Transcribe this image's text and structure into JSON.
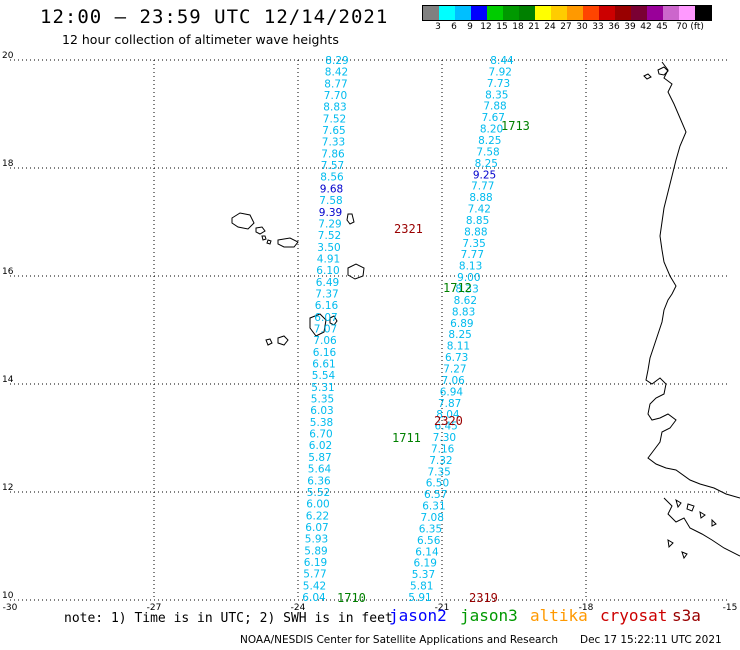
{
  "header": {
    "title": "12:00 — 23:59 UTC 12/14/2021",
    "subtitle": "12 hour collection of altimeter wave heights"
  },
  "colorbar": {
    "colors": [
      "#808080",
      "#00ffff",
      "#00bfff",
      "#0000ff",
      "#00cc00",
      "#009900",
      "#008000",
      "#ffff00",
      "#ffcc00",
      "#ff9900",
      "#ff4400",
      "#cc0000",
      "#990000",
      "#7a0033",
      "#990099",
      "#cc66cc",
      "#ff99ff",
      "#000000"
    ],
    "labels": [
      "3",
      "6",
      "9",
      "12",
      "15",
      "18",
      "21",
      "24",
      "27",
      "30",
      "33",
      "36",
      "39",
      "42",
      "45",
      "70 (ft)"
    ]
  },
  "axes": {
    "x_ticks": [
      "-30",
      "-27",
      "-24",
      "-21",
      "-18",
      "-15"
    ],
    "y_ticks": [
      "20",
      "18",
      "16",
      "14",
      "12",
      "10"
    ],
    "lon_range": [
      -30,
      -15
    ],
    "lat_range": [
      10,
      20
    ]
  },
  "track_west": {
    "values": [
      "8.29",
      "8.42",
      "8.77",
      "7.70",
      "8.83",
      "7.52",
      "7.65",
      "7.33",
      "7.86",
      "7.57",
      "8.56",
      "9.68",
      "7.58",
      "9.39",
      "7.29",
      "7.52",
      "3.50",
      "4.91",
      "6.10",
      "6.49",
      "7.37",
      "6.16",
      "6.07",
      "7.07",
      "7.06",
      "6.16",
      "6.61",
      "5.54",
      "5.31",
      "5.35",
      "6.03",
      "5.38",
      "6.70",
      "6.02",
      "5.87",
      "5.64",
      "6.36",
      "5.52",
      "6.00",
      "6.22",
      "6.07",
      "5.93",
      "5.89",
      "6.19",
      "5.77",
      "5.42",
      "6.04"
    ],
    "colors_by_index": {
      "11": "#0000cc",
      "13": "#0000cc"
    }
  },
  "track_east": {
    "values": [
      "8.44",
      "7.92",
      "7.73",
      "8.35",
      "7.88",
      "7.67",
      "8.20",
      "8.25",
      "7.58",
      "8.25",
      "9.25",
      "7.77",
      "8.88",
      "7.42",
      "8.85",
      "8.88",
      "7.35",
      "7.77",
      "8.13",
      "9.00",
      "8.33",
      "8.62",
      "8.83",
      "6.89",
      "8.25",
      "8.11",
      "6.73",
      "7.27",
      "7.06",
      "6.94",
      "7.87",
      "8.04",
      "6.45",
      "7.30",
      "7.16",
      "7.32",
      "7.35",
      "6.50",
      "6.57",
      "6.31",
      "7.08",
      "6.35",
      "6.56",
      "6.14",
      "6.19",
      "5.37",
      "5.81",
      "5.91"
    ],
    "colors_by_index": {
      "10": "#0000cc"
    }
  },
  "pass_labels": [
    {
      "text": "1713",
      "color": "#008000"
    },
    {
      "text": "2321",
      "color": "#990000"
    },
    {
      "text": "1712",
      "color": "#008000"
    },
    {
      "text": "2320",
      "color": "#990000"
    },
    {
      "text": "1711",
      "color": "#008000"
    },
    {
      "text": "1710",
      "color": "#008000"
    },
    {
      "text": "2319",
      "color": "#990000"
    }
  ],
  "legend": {
    "note": "note: 1) Time is in UTC; 2) SWH is in feet",
    "satellites": [
      {
        "name": "jason2",
        "color": "#0000ff"
      },
      {
        "name": "jason3",
        "color": "#009900"
      },
      {
        "name": "altika",
        "color": "#ff9900"
      },
      {
        "name": "cryosat",
        "color": "#cc0000"
      },
      {
        "name": "s3a",
        "color": "#990000"
      }
    ]
  },
  "footer": {
    "credit": "NOAA/NESDIS Center for Satellite Applications and Research",
    "timestamp": "Dec 17 15:22:11 UTC 2021"
  },
  "track_color": "#00bbee"
}
